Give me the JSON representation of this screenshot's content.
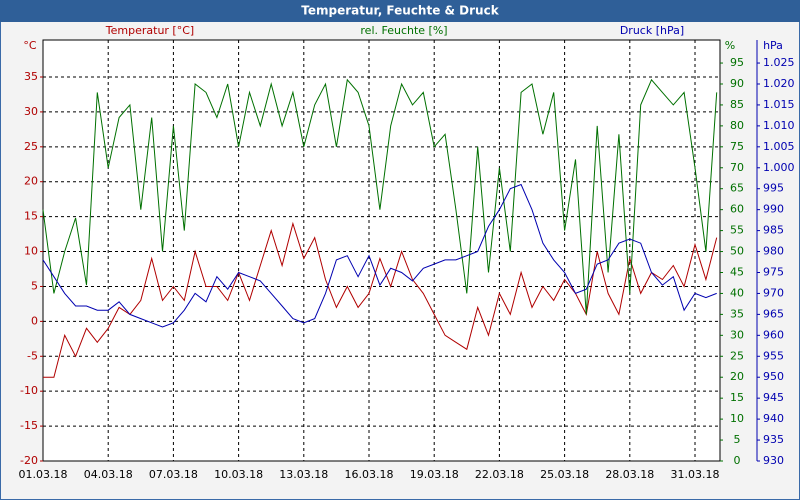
{
  "chart_data": {
    "type": "line",
    "title": "Temperatur, Feuchte & Druck",
    "x": [
      0,
      0.5,
      1,
      1.5,
      2,
      2.5,
      3,
      3.5,
      4,
      4.5,
      5,
      5.5,
      6,
      6.5,
      7,
      7.5,
      8,
      8.5,
      9,
      9.5,
      10,
      10.5,
      11,
      11.5,
      12,
      12.5,
      13,
      13.5,
      14,
      14.5,
      15,
      15.5,
      16,
      16.5,
      17,
      17.5,
      18,
      18.5,
      19,
      19.5,
      20,
      20.5,
      21,
      21.5,
      22,
      22.5,
      23,
      23.5,
      24,
      24.5,
      25,
      25.5,
      26,
      26.5,
      27,
      27.5,
      28,
      28.5,
      29,
      29.5,
      30,
      30.5,
      31
    ],
    "xlim": [
      0,
      31.15
    ],
    "xticks": [
      {
        "value": 0,
        "label": "01.03.18"
      },
      {
        "value": 3,
        "label": "04.03.18"
      },
      {
        "value": 6,
        "label": "07.03.18"
      },
      {
        "value": 9,
        "label": "10.03.18"
      },
      {
        "value": 12,
        "label": "13.03.18"
      },
      {
        "value": 15,
        "label": "16.03.18"
      },
      {
        "value": 18,
        "label": "19.03.18"
      },
      {
        "value": 21,
        "label": "22.03.18"
      },
      {
        "value": 24,
        "label": "25.03.18"
      },
      {
        "value": 27,
        "label": "28.03.18"
      },
      {
        "value": 30,
        "label": "31.03.18"
      }
    ],
    "ylabel": "°C",
    "y2label": "%",
    "y3label": "hPa",
    "ylim": [
      -20,
      40.3
    ],
    "yticks": [
      -20,
      -15,
      -10,
      -5,
      0,
      5,
      10,
      15,
      20,
      25,
      30,
      35
    ],
    "y2lim": [
      0,
      100.5
    ],
    "y2ticks": [
      0,
      5,
      10,
      15,
      20,
      25,
      30,
      35,
      40,
      45,
      50,
      55,
      60,
      65,
      70,
      75,
      80,
      85,
      90,
      95
    ],
    "y3lim": [
      930,
      1030.5
    ],
    "y3ticks": [
      930,
      935,
      940,
      945,
      950,
      955,
      960,
      965,
      970,
      975,
      980,
      985,
      990,
      995,
      {
        "value": 1000,
        "label": "1.000"
      },
      {
        "value": 1005,
        "label": "1.005"
      },
      {
        "value": 1010,
        "label": "1.010"
      },
      {
        "value": 1015,
        "label": "1.015"
      },
      {
        "value": 1020,
        "label": "1.020"
      },
      {
        "value": 1025,
        "label": "1.025"
      }
    ],
    "grid": true,
    "series": [
      {
        "name": "Temperatur [°C]",
        "color": "#b00000",
        "axis": "y",
        "values": [
          -8,
          -8,
          -2,
          -5,
          -1,
          -3,
          -1,
          2,
          1,
          3,
          9,
          3,
          5,
          3,
          10,
          5,
          5,
          3,
          7,
          3,
          8,
          13,
          8,
          14,
          9,
          12,
          6,
          2,
          5,
          2,
          4,
          9,
          5,
          10,
          6,
          4,
          1,
          -2,
          -3,
          -4,
          2,
          -2,
          4,
          1,
          7,
          2,
          5,
          3,
          6,
          4,
          1,
          10,
          4,
          1,
          9,
          4,
          7,
          6,
          8,
          5,
          11,
          6,
          12
        ]
      },
      {
        "name": "rel. Feuchte [%]",
        "color": "#007000",
        "axis": "y2",
        "values": [
          60,
          40,
          50,
          58,
          42,
          88,
          70,
          82,
          85,
          60,
          82,
          50,
          80,
          55,
          90,
          88,
          82,
          90,
          75,
          88,
          80,
          90,
          80,
          88,
          75,
          85,
          90,
          75,
          91,
          88,
          80,
          60,
          80,
          90,
          85,
          88,
          75,
          78,
          60,
          40,
          75,
          45,
          70,
          50,
          88,
          90,
          78,
          88,
          55,
          72,
          35,
          80,
          45,
          78,
          40,
          85,
          91,
          88,
          85,
          88,
          70,
          50,
          88
        ]
      },
      {
        "name": "Druck [hPa]",
        "color": "#0000b0",
        "axis": "y3",
        "values": [
          978,
          974,
          970,
          967,
          967,
          966,
          966,
          968,
          965,
          964,
          963,
          962,
          963,
          966,
          970,
          968,
          974,
          971,
          975,
          974,
          973,
          970,
          967,
          964,
          963,
          964,
          970,
          978,
          979,
          974,
          979,
          972,
          976,
          975,
          973,
          976,
          977,
          978,
          978,
          979,
          980,
          986,
          990,
          995,
          996,
          990,
          982,
          978,
          975,
          970,
          971,
          977,
          978,
          982,
          983,
          982,
          975,
          972,
          974,
          966,
          970,
          969,
          970
        ]
      }
    ]
  }
}
